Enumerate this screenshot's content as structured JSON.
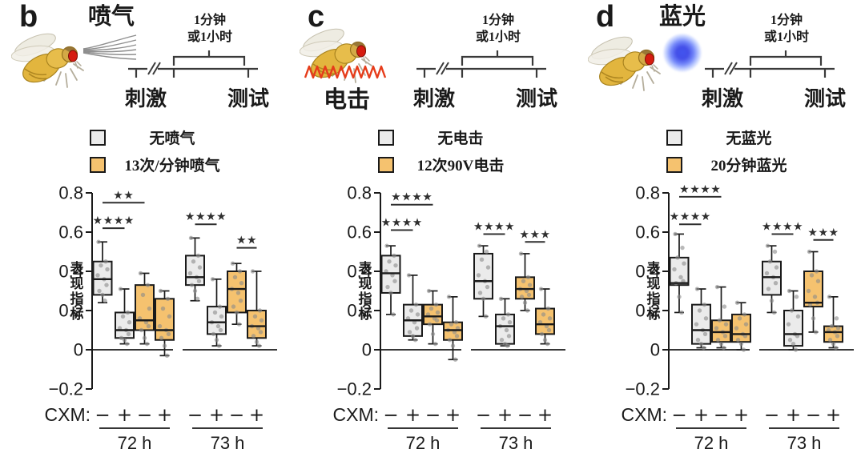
{
  "colors": {
    "box_gray": "#ebebeb",
    "box_orange": "#f5c26f",
    "box_stroke": "#1a1a1a",
    "dot": "#8a8a8a",
    "sig_line": "#2f2f2f",
    "axis": "#1a1a1a",
    "zigzag_red": "#e63c1a",
    "blue_light": "#3c50ee",
    "airpuff_gray": "#8e8e8e"
  },
  "panels": [
    {
      "letter": "b",
      "stimulus_label": "喷气",
      "stimulus_icon": "air-puff",
      "timeline": {
        "duration_line1": "1分钟",
        "duration_line2": "或1小时",
        "start_label": "刺激",
        "end_label": "测试"
      },
      "legend": [
        {
          "label": "无喷气",
          "swatch": "box_gray"
        },
        {
          "label": "13次/分钟喷气",
          "swatch": "box_orange"
        }
      ],
      "chart_data": {
        "type": "box",
        "ylabel": "表现指标",
        "yticks": [
          0.8,
          0.6,
          0.4,
          0.2,
          0,
          -0.2
        ],
        "ylim": [
          -0.25,
          0.85
        ],
        "x_axis_title": "CXM:",
        "cxm": [
          "−",
          "+",
          "−",
          "+",
          "−",
          "+",
          "−",
          "+"
        ],
        "groups": [
          "72 h",
          "73 h"
        ],
        "boxes": [
          {
            "group": "72 h",
            "cxm": "−",
            "swatch": "box_gray",
            "whisker_low": 0.24,
            "q1": 0.28,
            "median": 0.36,
            "q3": 0.45,
            "whisker_high": 0.55,
            "points": [
              0.55,
              0.45,
              0.43,
              0.41,
              0.38,
              0.36,
              0.33,
              0.3,
              0.28,
              0.25
            ]
          },
          {
            "group": "72 h",
            "cxm": "+",
            "swatch": "box_gray",
            "whisker_low": 0.03,
            "q1": 0.06,
            "median": 0.1,
            "q3": 0.19,
            "whisker_high": 0.31,
            "points": [
              0.31,
              0.19,
              0.17,
              0.14,
              0.11,
              0.1,
              0.08,
              0.06,
              0.05,
              0.03
            ]
          },
          {
            "group": "72 h",
            "cxm": "−",
            "swatch": "box_orange",
            "whisker_low": 0.03,
            "q1": 0.1,
            "median": 0.15,
            "q3": 0.33,
            "whisker_high": 0.39,
            "points": [
              0.39,
              0.33,
              0.28,
              0.21,
              0.16,
              0.14,
              0.12,
              0.1,
              0.06,
              0.03
            ]
          },
          {
            "group": "72 h",
            "cxm": "+",
            "swatch": "box_orange",
            "whisker_low": -0.03,
            "q1": 0.05,
            "median": 0.1,
            "q3": 0.26,
            "whisker_high": 0.3,
            "points": [
              0.3,
              0.26,
              0.21,
              0.17,
              0.12,
              0.1,
              0.08,
              0.06,
              0.02,
              -0.03
            ]
          },
          {
            "group": "73 h",
            "cxm": "−",
            "swatch": "box_gray",
            "whisker_low": 0.25,
            "q1": 0.33,
            "median": 0.37,
            "q3": 0.48,
            "whisker_high": 0.57,
            "points": [
              0.57,
              0.48,
              0.45,
              0.42,
              0.39,
              0.37,
              0.35,
              0.33,
              0.3,
              0.26
            ]
          },
          {
            "group": "73 h",
            "cxm": "+",
            "swatch": "box_gray",
            "whisker_low": 0.02,
            "q1": 0.08,
            "median": 0.14,
            "q3": 0.22,
            "whisker_high": 0.36,
            "points": [
              0.36,
              0.22,
              0.19,
              0.17,
              0.14,
              0.12,
              0.1,
              0.08,
              0.05,
              0.02
            ]
          },
          {
            "group": "73 h",
            "cxm": "−",
            "swatch": "box_orange",
            "whisker_low": 0.13,
            "q1": 0.19,
            "median": 0.31,
            "q3": 0.4,
            "whisker_high": 0.44,
            "points": [
              0.44,
              0.4,
              0.37,
              0.34,
              0.31,
              0.29,
              0.25,
              0.22,
              0.19,
              0.13
            ]
          },
          {
            "group": "73 h",
            "cxm": "+",
            "swatch": "box_orange",
            "whisker_low": 0.02,
            "q1": 0.06,
            "median": 0.12,
            "q3": 0.2,
            "whisker_high": 0.4,
            "points": [
              0.4,
              0.2,
              0.17,
              0.15,
              0.12,
              0.11,
              0.09,
              0.07,
              0.04,
              0.02
            ]
          }
        ],
        "significance": [
          {
            "from": 0,
            "to": 2,
            "label": "★★",
            "line_y": 0.75
          },
          {
            "from": 0,
            "to": 1,
            "label": "★★★★",
            "line_y": 0.62
          },
          {
            "from": 4,
            "to": 5,
            "label": "★★★★",
            "line_y": 0.64
          },
          {
            "from": 6,
            "to": 7,
            "label": "★★",
            "line_y": 0.52
          }
        ]
      }
    },
    {
      "letter": "c",
      "stimulus_label": "电击",
      "stimulus_icon": "shock-grid",
      "timeline": {
        "duration_line1": "1分钟",
        "duration_line2": "或1小时",
        "start_label": "刺激",
        "end_label": "测试"
      },
      "legend": [
        {
          "label": "无电击",
          "swatch": "box_gray"
        },
        {
          "label": "12次90V电击",
          "swatch": "box_orange"
        }
      ],
      "chart_data": {
        "type": "box",
        "ylabel": "表现指标",
        "yticks": [
          0.8,
          0.6,
          0.4,
          0.2,
          0,
          -0.2
        ],
        "ylim": [
          -0.25,
          0.85
        ],
        "x_axis_title": "CXM:",
        "cxm": [
          "−",
          "+",
          "−",
          "+",
          "−",
          "+",
          "−",
          "+"
        ],
        "groups": [
          "72 h",
          "73 h"
        ],
        "boxes": [
          {
            "group": "72 h",
            "cxm": "−",
            "swatch": "box_gray",
            "whisker_low": 0.18,
            "q1": 0.29,
            "median": 0.39,
            "q3": 0.48,
            "whisker_high": 0.53,
            "points": [
              0.53,
              0.48,
              0.45,
              0.43,
              0.4,
              0.38,
              0.35,
              0.32,
              0.29,
              0.18
            ]
          },
          {
            "group": "72 h",
            "cxm": "+",
            "swatch": "box_gray",
            "whisker_low": 0.05,
            "q1": 0.07,
            "median": 0.15,
            "q3": 0.23,
            "whisker_high": 0.38,
            "points": [
              0.38,
              0.23,
              0.2,
              0.18,
              0.16,
              0.14,
              0.11,
              0.09,
              0.07,
              0.05
            ]
          },
          {
            "group": "72 h",
            "cxm": "−",
            "swatch": "box_orange",
            "whisker_low": 0.03,
            "q1": 0.13,
            "median": 0.17,
            "q3": 0.23,
            "whisker_high": 0.3,
            "points": [
              0.3,
              0.23,
              0.21,
              0.19,
              0.18,
              0.16,
              0.15,
              0.13,
              0.08,
              0.03
            ]
          },
          {
            "group": "72 h",
            "cxm": "+",
            "swatch": "box_orange",
            "whisker_low": -0.05,
            "q1": 0.05,
            "median": 0.1,
            "q3": 0.14,
            "whisker_high": 0.27,
            "points": [
              0.27,
              0.14,
              0.13,
              0.11,
              0.1,
              0.09,
              0.07,
              0.05,
              0.02,
              -0.05
            ]
          },
          {
            "group": "73 h",
            "cxm": "−",
            "swatch": "box_gray",
            "whisker_low": 0.17,
            "q1": 0.26,
            "median": 0.35,
            "q3": 0.49,
            "whisker_high": 0.53,
            "points": [
              0.53,
              0.5,
              0.46,
              0.42,
              0.38,
              0.35,
              0.32,
              0.29,
              0.26,
              0.17
            ]
          },
          {
            "group": "73 h",
            "cxm": "+",
            "swatch": "box_gray",
            "whisker_low": 0.02,
            "q1": 0.03,
            "median": 0.12,
            "q3": 0.18,
            "whisker_high": 0.26,
            "points": [
              0.26,
              0.18,
              0.16,
              0.14,
              0.12,
              0.1,
              0.07,
              0.05,
              0.03,
              0.02
            ]
          },
          {
            "group": "73 h",
            "cxm": "−",
            "swatch": "box_orange",
            "whisker_low": 0.2,
            "q1": 0.26,
            "median": 0.31,
            "q3": 0.37,
            "whisker_high": 0.49,
            "points": [
              0.49,
              0.37,
              0.35,
              0.33,
              0.31,
              0.3,
              0.28,
              0.27,
              0.24,
              0.2
            ]
          },
          {
            "group": "73 h",
            "cxm": "+",
            "swatch": "box_orange",
            "whisker_low": 0.03,
            "q1": 0.08,
            "median": 0.13,
            "q3": 0.21,
            "whisker_high": 0.31,
            "points": [
              0.31,
              0.21,
              0.18,
              0.16,
              0.14,
              0.12,
              0.1,
              0.08,
              0.05,
              0.03
            ]
          }
        ],
        "significance": [
          {
            "from": 0,
            "to": 2,
            "label": "★★★★",
            "line_y": 0.74
          },
          {
            "from": 0,
            "to": 1,
            "label": "★★★★",
            "line_y": 0.61
          },
          {
            "from": 4,
            "to": 5,
            "label": "★★★★",
            "line_y": 0.59
          },
          {
            "from": 6,
            "to": 7,
            "label": "★★★",
            "line_y": 0.55
          }
        ]
      }
    },
    {
      "letter": "d",
      "stimulus_label": "蓝光",
      "stimulus_icon": "blue-light",
      "timeline": {
        "duration_line1": "1分钟",
        "duration_line2": "或1小时",
        "start_label": "刺激",
        "end_label": "测试"
      },
      "legend": [
        {
          "label": "无蓝光",
          "swatch": "box_gray"
        },
        {
          "label": "20分钟蓝光",
          "swatch": "box_orange"
        }
      ],
      "chart_data": {
        "type": "box",
        "ylabel": "表现指标",
        "yticks": [
          0.8,
          0.6,
          0.4,
          0.2,
          0,
          -0.2
        ],
        "ylim": [
          -0.25,
          0.85
        ],
        "x_axis_title": "CXM:",
        "cxm": [
          "−",
          "+",
          "−",
          "+",
          "−",
          "+",
          "−",
          "+"
        ],
        "groups": [
          "72 h",
          "73 h"
        ],
        "boxes": [
          {
            "group": "72 h",
            "cxm": "−",
            "swatch": "box_gray",
            "whisker_low": 0.19,
            "q1": 0.33,
            "median": 0.34,
            "q3": 0.47,
            "whisker_high": 0.59,
            "points": [
              0.59,
              0.52,
              0.47,
              0.44,
              0.41,
              0.37,
              0.35,
              0.34,
              0.27,
              0.19
            ]
          },
          {
            "group": "72 h",
            "cxm": "+",
            "swatch": "box_gray",
            "whisker_low": 0.01,
            "q1": 0.03,
            "median": 0.1,
            "q3": 0.23,
            "whisker_high": 0.31,
            "points": [
              0.31,
              0.23,
              0.2,
              0.16,
              0.13,
              0.1,
              0.08,
              0.05,
              0.03,
              0.01
            ]
          },
          {
            "group": "72 h",
            "cxm": "−",
            "swatch": "box_orange",
            "whisker_low": 0.01,
            "q1": 0.04,
            "median": 0.09,
            "q3": 0.15,
            "whisker_high": 0.32,
            "points": [
              0.32,
              0.22,
              0.15,
              0.13,
              0.11,
              0.09,
              0.07,
              0.05,
              0.03,
              0.01
            ]
          },
          {
            "group": "72 h",
            "cxm": "+",
            "swatch": "box_orange",
            "whisker_low": 0.0,
            "q1": 0.04,
            "median": 0.08,
            "q3": 0.18,
            "whisker_high": 0.24,
            "points": [
              0.24,
              0.18,
              0.16,
              0.13,
              0.11,
              0.08,
              0.07,
              0.05,
              0.03,
              0.0
            ]
          },
          {
            "group": "73 h",
            "cxm": "−",
            "swatch": "box_gray",
            "whisker_low": 0.19,
            "q1": 0.28,
            "median": 0.37,
            "q3": 0.45,
            "whisker_high": 0.53,
            "points": [
              0.53,
              0.5,
              0.45,
              0.42,
              0.39,
              0.37,
              0.34,
              0.31,
              0.25,
              0.19
            ]
          },
          {
            "group": "73 h",
            "cxm": "+",
            "swatch": "box_gray",
            "whisker_low": 0.0,
            "q1": 0.02,
            "median": 0.08,
            "q3": 0.2,
            "whisker_high": 0.3,
            "points": [
              0.3,
              0.27,
              0.2,
              0.17,
              0.13,
              0.08,
              0.07,
              0.05,
              0.03,
              0.0
            ]
          },
          {
            "group": "73 h",
            "cxm": "−",
            "swatch": "box_orange",
            "whisker_low": 0.09,
            "q1": 0.22,
            "median": 0.24,
            "q3": 0.4,
            "whisker_high": 0.5,
            "points": [
              0.5,
              0.4,
              0.38,
              0.35,
              0.3,
              0.27,
              0.24,
              0.23,
              0.16,
              0.09
            ]
          },
          {
            "group": "73 h",
            "cxm": "+",
            "swatch": "box_orange",
            "whisker_low": 0.01,
            "q1": 0.04,
            "median": 0.09,
            "q3": 0.12,
            "whisker_high": 0.27,
            "points": [
              0.27,
              0.16,
              0.12,
              0.11,
              0.1,
              0.09,
              0.07,
              0.05,
              0.03,
              0.01
            ]
          }
        ],
        "significance": [
          {
            "from": 0,
            "to": 2,
            "label": "★★★★",
            "line_y": 0.78
          },
          {
            "from": 0,
            "to": 1,
            "label": "★★★★",
            "line_y": 0.64
          },
          {
            "from": 4,
            "to": 5,
            "label": "★★★★",
            "line_y": 0.59
          },
          {
            "from": 6,
            "to": 7,
            "label": "★★★",
            "line_y": 0.56
          }
        ]
      }
    }
  ]
}
